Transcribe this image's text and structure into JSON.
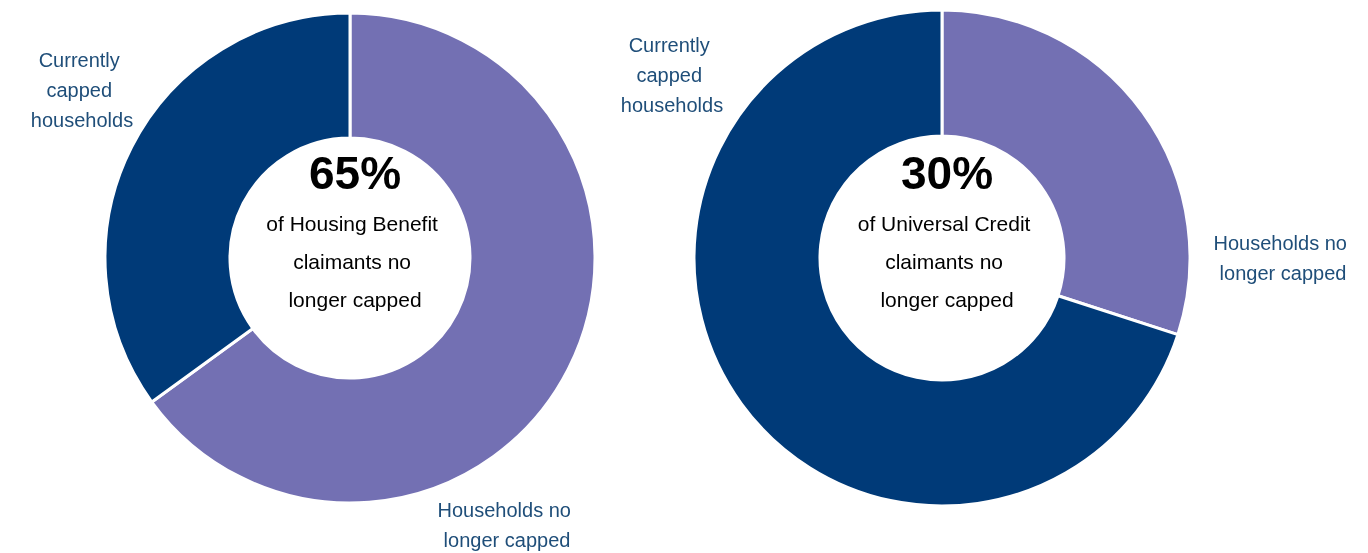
{
  "chart_data": [
    {
      "type": "donut",
      "title": "65%",
      "subtitle": "of Housing Benefit claimants no longer capped",
      "categories": [
        "Households no longer capped",
        "Currently capped households"
      ],
      "values": [
        65,
        35
      ],
      "colors": [
        "#7370b3",
        "#003a78"
      ]
    },
    {
      "type": "donut",
      "title": "30%",
      "subtitle": "of Universal Credit claimants no longer capped",
      "categories": [
        "Households no longer capped",
        "Currently capped households"
      ],
      "values": [
        30,
        70
      ],
      "colors": [
        "#7370b3",
        "#003a78"
      ]
    }
  ]
}
